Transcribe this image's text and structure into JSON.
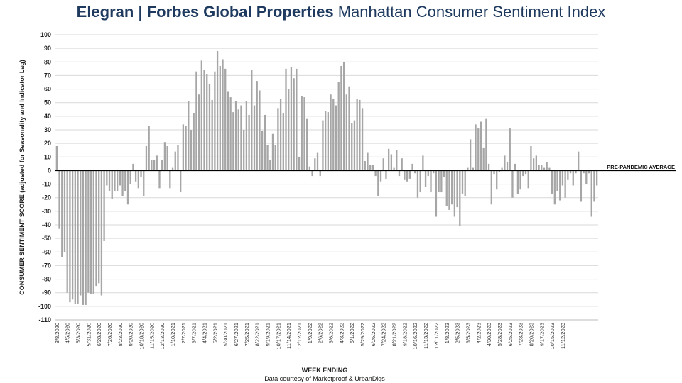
{
  "header": {
    "brand": "Elegran | Forbes Global Properties",
    "subtitle": "Manhattan Consumer Sentiment Index"
  },
  "footer": {
    "credit": "Data courtesy of Marketproof & UrbanDigs"
  },
  "colors": {
    "bar": "#a6a6a6",
    "grid": "#d9d9d9",
    "title": "#1f3a5f",
    "axis": "#000000"
  },
  "chart_data": {
    "type": "bar",
    "title": "Elegran | Forbes Global Properties Manhattan Consumer Sentiment Index",
    "xlabel": "WEEK ENDING",
    "ylabel": "CONSUMER SENTIMENT SCORE (adjusted for Seasonality and Indicator Lag)",
    "ylim": [
      -110,
      100
    ],
    "yticks": [
      100,
      90,
      80,
      70,
      60,
      50,
      40,
      30,
      20,
      10,
      0,
      -10,
      -20,
      -30,
      -40,
      -50,
      -60,
      -70,
      -80,
      -90,
      -100,
      -110
    ],
    "grid": true,
    "reference_line": {
      "value": 0,
      "label": "PRE-PANDEMIC  AVERAGE"
    },
    "tick_labels": [
      "3/8/2020",
      "4/5/2020",
      "5/3/2020",
      "5/31/2020",
      "6/28/2020",
      "7/26/2020",
      "8/23/2020",
      "9/20/2020",
      "10/18/2020",
      "11/15/2020",
      "12/13/2020",
      "1/10/2021",
      "2/7/2021",
      "3/7/2021",
      "4/4/2021",
      "5/2/2021",
      "5/30/2021",
      "6/27/2021",
      "7/25/2021",
      "8/22/2021",
      "9/19/2021",
      "10/17/2021",
      "11/14/2021",
      "12/12/2021",
      "1/9/2022",
      "2/6/2022",
      "3/6/2022",
      "4/3/2022",
      "5/1/2022",
      "5/29/2022",
      "6/26/2022",
      "7/24/2022",
      "8/21/2022",
      "9/18/2022",
      "10/16/2022",
      "11/13/2022",
      "12/11/2022",
      "1/8/2023",
      "2/5/2023",
      "3/5/2023",
      "4/2/2023",
      "4/30/2023",
      "5/28/2023",
      "6/25/2023",
      "7/23/2023",
      "8/20/2023",
      "9/17/2023",
      "10/15/2023",
      "11/12/2023"
    ],
    "values": [
      18,
      -43,
      -64,
      -60,
      -90,
      -97,
      -95,
      -98,
      -98,
      -92,
      -99,
      -99,
      -90,
      -91,
      -91,
      -85,
      -83,
      -92,
      -52,
      -11,
      -15,
      -21,
      -15,
      -15,
      -11,
      -19,
      -15,
      -25,
      -10,
      5,
      -8,
      -13,
      -5,
      -19,
      18,
      33,
      8,
      8,
      11,
      -13,
      8,
      21,
      18,
      -13,
      2,
      14,
      19,
      -16,
      34,
      33,
      51,
      30,
      42,
      73,
      56,
      81,
      74,
      71,
      64,
      52,
      73,
      88,
      77,
      82,
      75,
      58,
      54,
      43,
      51,
      45,
      48,
      30,
      51,
      41,
      74,
      48,
      66,
      59,
      29,
      41,
      19,
      8,
      27,
      19,
      46,
      53,
      42,
      75,
      60,
      76,
      68,
      75,
      10,
      55,
      54,
      38,
      3,
      -4,
      9,
      13,
      -4,
      37,
      44,
      43,
      56,
      53,
      48,
      65,
      77,
      80,
      56,
      62,
      35,
      37,
      53,
      52,
      46,
      7,
      13,
      4,
      4,
      -4,
      -19,
      -8,
      9,
      -6,
      16,
      12,
      2,
      15,
      -4,
      9,
      -7,
      -8,
      -6,
      5,
      -2,
      -20,
      -16,
      11,
      -12,
      -4,
      -16,
      -2,
      -34,
      -16,
      -16,
      -5,
      -26,
      -29,
      -25,
      -34,
      -27,
      -41,
      -17,
      -19,
      2,
      23,
      2,
      34,
      31,
      36,
      17,
      38,
      5,
      -25,
      -3,
      -14,
      -1,
      2,
      11,
      6,
      31,
      -20,
      5,
      -17,
      -14,
      -4,
      -3,
      -13,
      18,
      9,
      11,
      4,
      4,
      2,
      6,
      2,
      -17,
      -25,
      -15,
      -22,
      -11,
      -20,
      -7,
      -2,
      -11,
      -2,
      14,
      -23,
      -2,
      -10,
      -2,
      -34,
      -23,
      -11
    ]
  }
}
